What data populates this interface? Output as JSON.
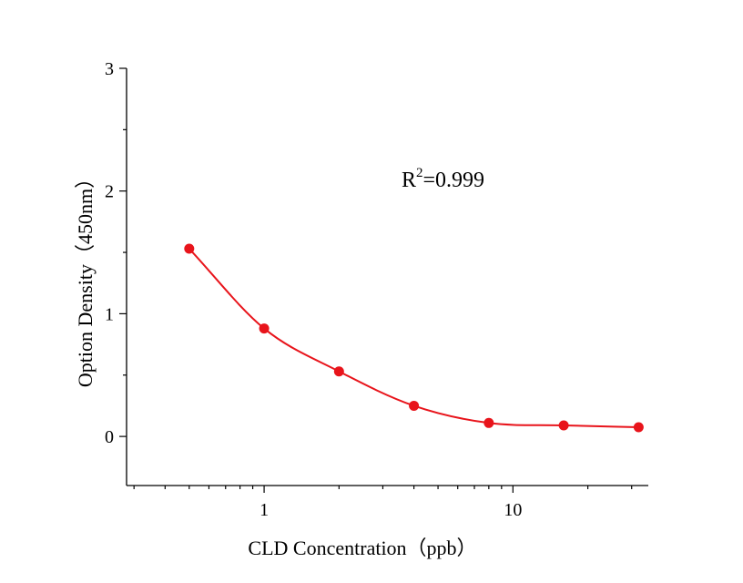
{
  "chart_data": {
    "type": "scatter",
    "xlabel": "CLD Concentration（ppb）",
    "ylabel": "Option Density（450nm）",
    "xscale": "log",
    "xlim": [
      0.28,
      35
    ],
    "ylim": [
      -0.4,
      3
    ],
    "x_ticks": [
      1,
      10
    ],
    "x_tick_labels": [
      "1",
      "10"
    ],
    "y_ticks": [
      0,
      1,
      2,
      3
    ],
    "y_tick_labels": [
      "0",
      "1",
      "2",
      "3"
    ],
    "grid": false,
    "series": [
      {
        "color": "#e8141b",
        "points": [
          {
            "x": 0.5,
            "y": 1.53
          },
          {
            "x": 1,
            "y": 0.88
          },
          {
            "x": 2,
            "y": 0.53
          },
          {
            "x": 4,
            "y": 0.25
          },
          {
            "x": 8,
            "y": 0.11
          },
          {
            "x": 16,
            "y": 0.09
          },
          {
            "x": 32,
            "y": 0.075
          }
        ],
        "fit_curve": true
      }
    ],
    "annotation": {
      "r_base": "R",
      "r_sup": "2",
      "r_value": "=0.999"
    }
  }
}
